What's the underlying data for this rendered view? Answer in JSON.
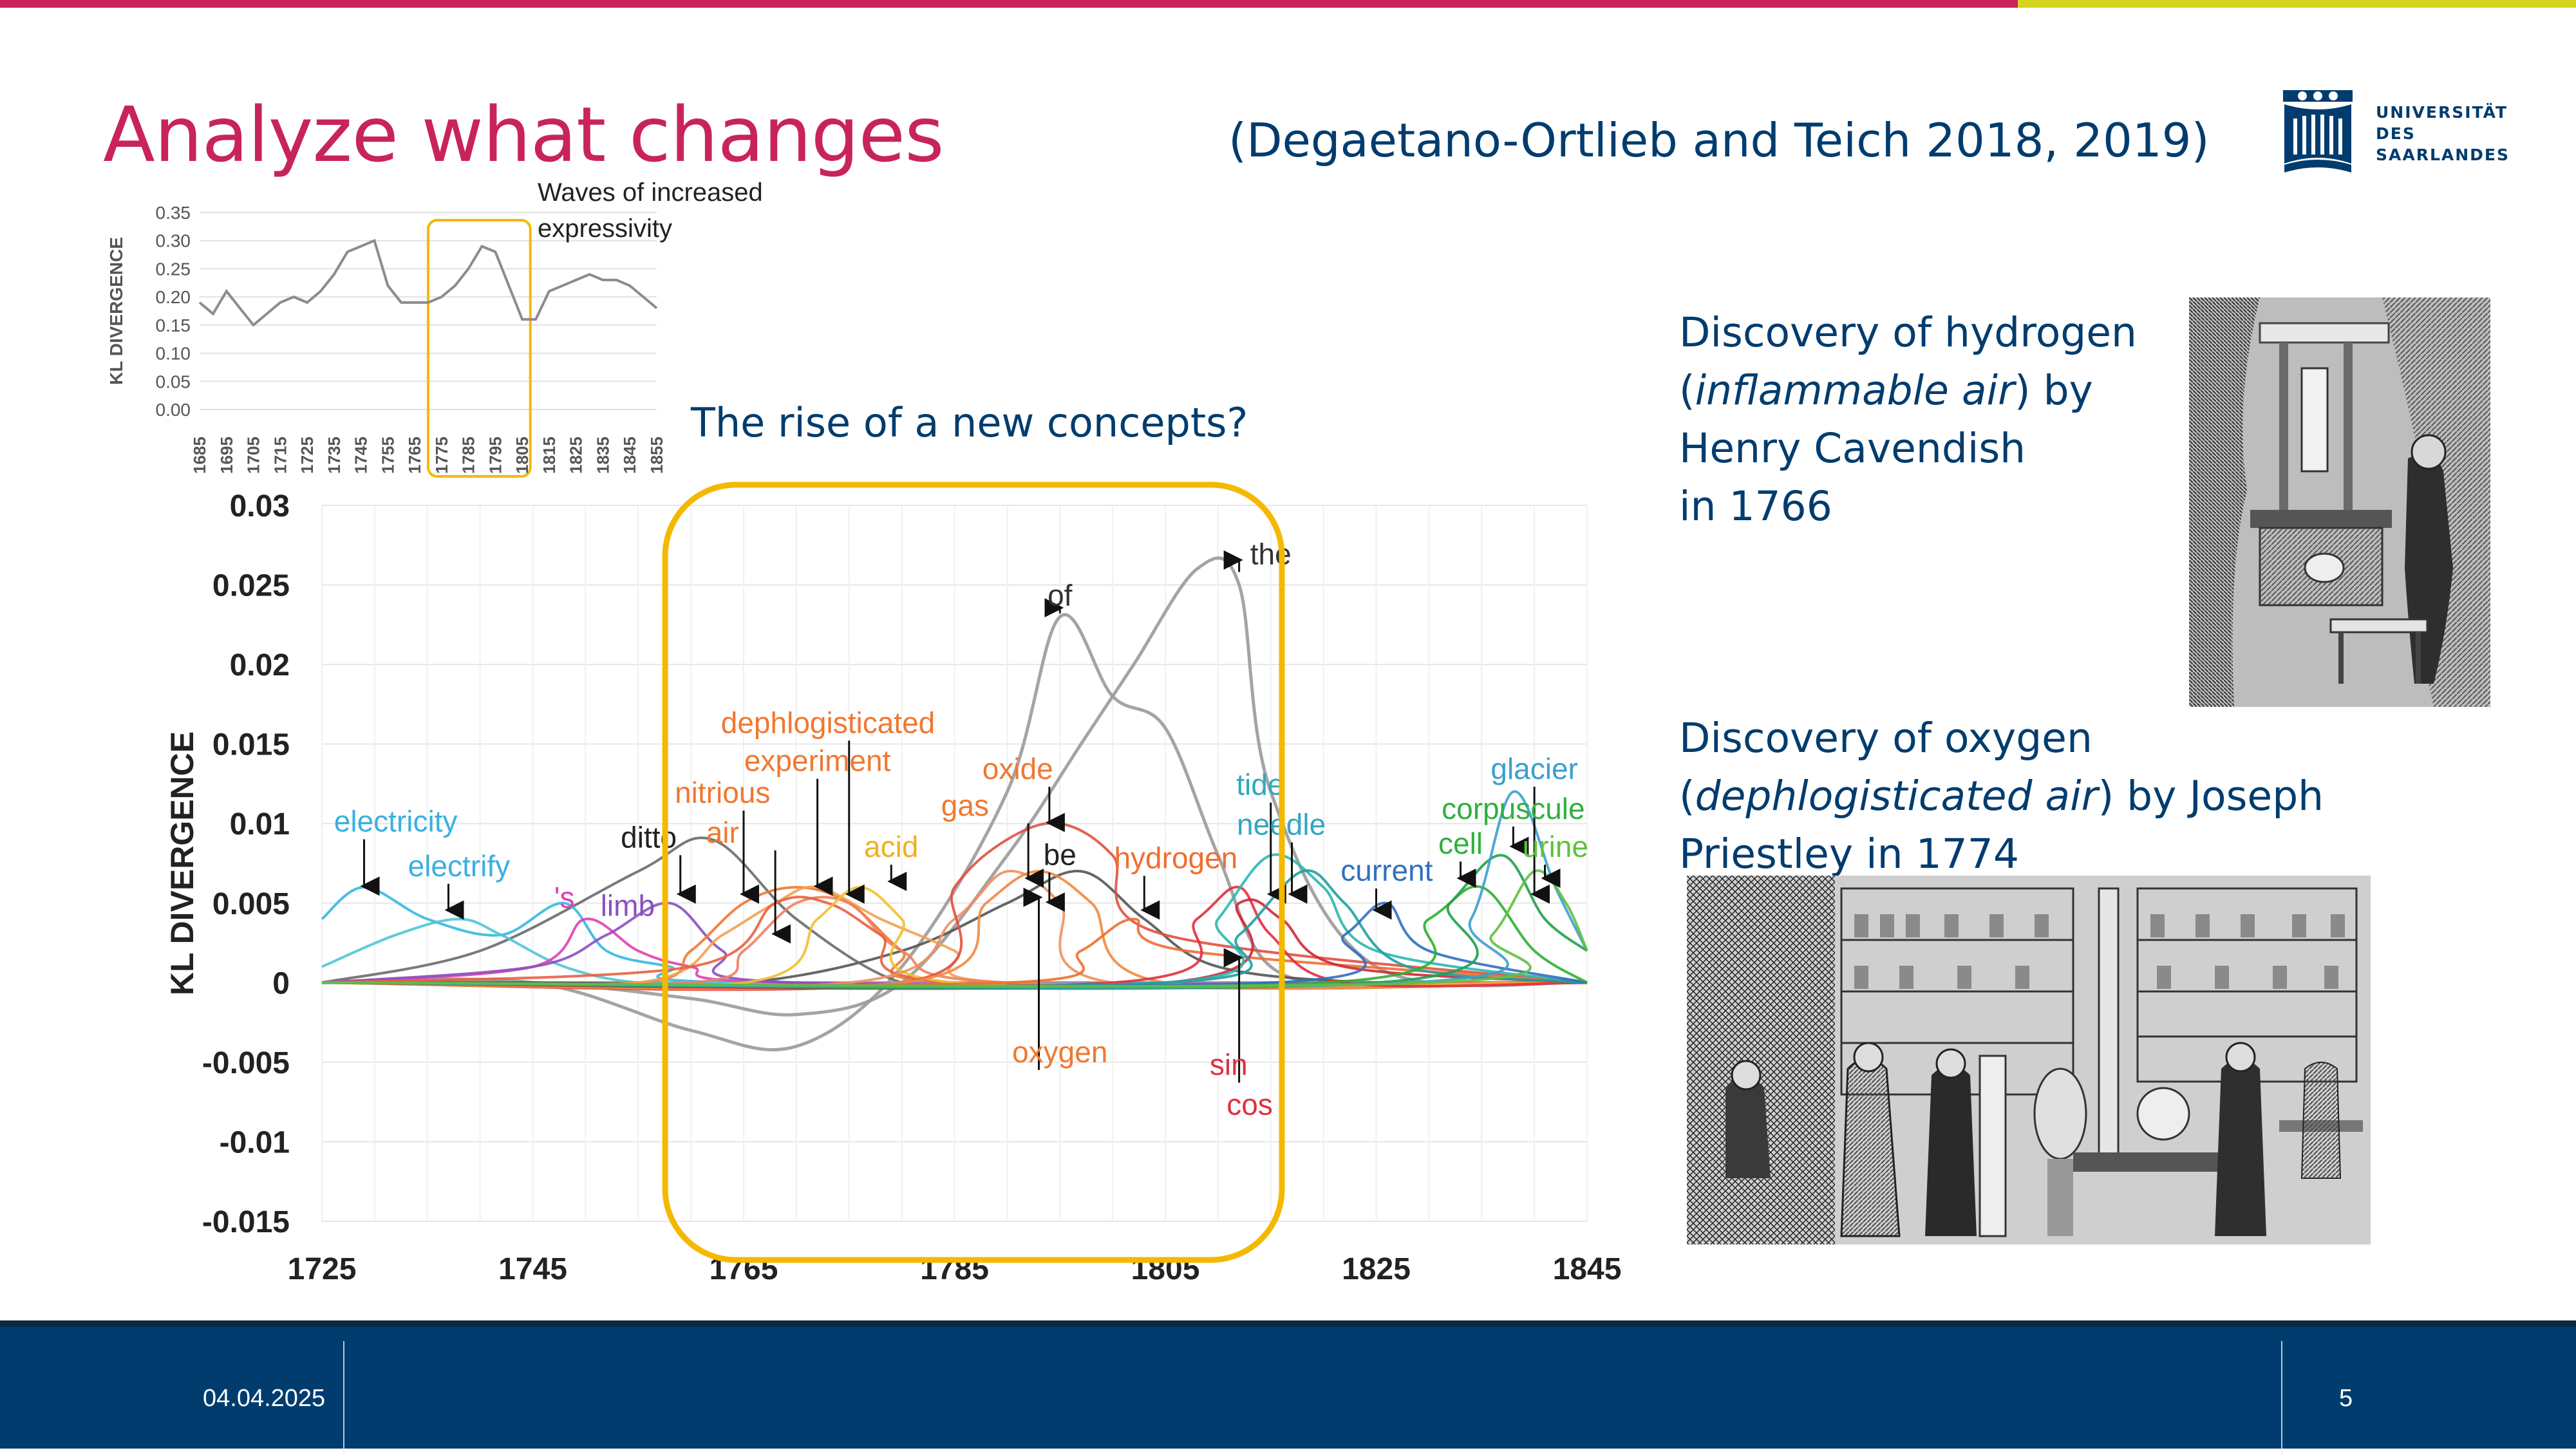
{
  "theme": {
    "red": "#c8245a",
    "yellow": "#d7d41f",
    "navy": "#003c6e",
    "navy_dark": "#0a2940",
    "highlight": "#f5b800"
  },
  "slide": {
    "title": "Analyze what changes",
    "citation": "(Degaetano-Ortlieb and Teich 2018, 2019)",
    "logo_lines": [
      "UNIVERSITÄT",
      "DES",
      "SAARLANDES"
    ],
    "rise_label": "The rise of a new concepts?"
  },
  "hydrogen": {
    "line1": "Discovery of hydrogen",
    "line2_open": "(",
    "line2_italic": "inflammable air",
    "line2_close": ") by",
    "line3": "Henry Cavendish",
    "line4": "in 1766"
  },
  "oxygen": {
    "line1": "Discovery of oxygen",
    "line2_open": "(",
    "line2_italic": "dephlogisticated air",
    "line2_close": ") by Joseph",
    "line3": "Priestley in 1774"
  },
  "footer": {
    "date": "04.04.2025",
    "page": "5"
  },
  "chart_data": [
    {
      "type": "area",
      "ylabel": "KL DIVERGENCE",
      "ylim": [
        0,
        0.35
      ],
      "yticks": [
        "0.35",
        "0.30",
        "0.25",
        "0.20",
        "0.15",
        "0.10",
        "0.05",
        "0.00"
      ],
      "xticks": [
        "1685",
        "1695",
        "1705",
        "1715",
        "1725",
        "1735",
        "1745",
        "1755",
        "1765",
        "1775",
        "1785",
        "1795",
        "1805",
        "1815",
        "1825",
        "1835",
        "1845",
        "1855"
      ],
      "annotation": "Waves of increased expressivity",
      "highlight_range": [
        1770,
        1808
      ],
      "x": [
        1685,
        1690,
        1695,
        1700,
        1705,
        1710,
        1715,
        1720,
        1725,
        1730,
        1735,
        1740,
        1745,
        1750,
        1755,
        1760,
        1765,
        1770,
        1775,
        1780,
        1785,
        1790,
        1795,
        1800,
        1805,
        1810,
        1815,
        1820,
        1825,
        1830,
        1835,
        1840,
        1845,
        1850,
        1855
      ],
      "y": [
        0.19,
        0.17,
        0.21,
        0.18,
        0.15,
        0.17,
        0.19,
        0.2,
        0.19,
        0.21,
        0.24,
        0.28,
        0.29,
        0.3,
        0.22,
        0.19,
        0.19,
        0.19,
        0.2,
        0.22,
        0.25,
        0.29,
        0.28,
        0.22,
        0.16,
        0.16,
        0.21,
        0.22,
        0.23,
        0.24,
        0.23,
        0.23,
        0.22,
        0.2,
        0.18
      ]
    },
    {
      "type": "line",
      "ylabel": "KL DIVERGENCE",
      "ylim": [
        -0.015,
        0.03
      ],
      "xlim": [
        1725,
        1845
      ],
      "yticks": [
        "0.03",
        "0.025",
        "0.02",
        "0.015",
        "0.01",
        "0.005",
        "0",
        "-0.005",
        "-0.01",
        "-0.015"
      ],
      "xticks": [
        "1725",
        "1745",
        "1765",
        "1785",
        "1805",
        "1825",
        "1845"
      ],
      "grid": true,
      "highlight_range": [
        1760,
        1813
      ],
      "series": [
        {
          "name": "the",
          "color": "#9a9a9a",
          "x": [
            1725,
            1745,
            1760,
            1770,
            1780,
            1790,
            1797,
            1802,
            1808,
            1812,
            1815,
            1825,
            1845
          ],
          "y": [
            0,
            0,
            -0.001,
            -0.002,
            0,
            0.008,
            0.015,
            0.02,
            0.026,
            0.025,
            0.012,
            0.001,
            0
          ]
        },
        {
          "name": "of",
          "color": "#9a9a9a",
          "x": [
            1725,
            1745,
            1760,
            1770,
            1780,
            1790,
            1795,
            1800,
            1805,
            1810,
            1815,
            1825,
            1845
          ],
          "y": [
            0,
            0,
            -0.003,
            -0.004,
            0.001,
            0.012,
            0.023,
            0.018,
            0.016,
            0.008,
            0.001,
            0,
            0
          ]
        },
        {
          "name": "be",
          "color": "#555555",
          "x": [
            1725,
            1745,
            1765,
            1780,
            1790,
            1797,
            1803,
            1810,
            1825,
            1845
          ],
          "y": [
            0,
            0,
            0,
            0.002,
            0.005,
            0.007,
            0.004,
            0.001,
            0,
            0
          ]
        },
        {
          "name": "ditto",
          "color": "#6a6a6a",
          "x": [
            1725,
            1740,
            1755,
            1762,
            1770,
            1780,
            1790,
            1800,
            1845
          ],
          "y": [
            0,
            0.002,
            0.007,
            0.009,
            0.004,
            0,
            0,
            0,
            0
          ]
        },
        {
          "name": "electricity",
          "color": "#35b8e0",
          "x": [
            1725,
            1729,
            1735,
            1742,
            1748,
            1752,
            1758,
            1765,
            1845
          ],
          "y": [
            0.004,
            0.006,
            0.004,
            0.003,
            0.005,
            0.002,
            0.001,
            0,
            0
          ]
        },
        {
          "name": "electrify",
          "color": "#4fc4d8",
          "x": [
            1725,
            1732,
            1738,
            1742,
            1748,
            1755,
            1765,
            1845
          ],
          "y": [
            0.001,
            0.003,
            0.004,
            0.003,
            0.001,
            0,
            0,
            0
          ]
        },
        {
          "name": "'s",
          "color": "#e040b0",
          "x": [
            1725,
            1745,
            1750,
            1755,
            1760,
            1770,
            1845
          ],
          "y": [
            0,
            0.001,
            0.004,
            0.002,
            0.001,
            0,
            0
          ]
        },
        {
          "name": "limb",
          "color": "#8a50c0",
          "x": [
            1725,
            1745,
            1752,
            1758,
            1763,
            1770,
            1845
          ],
          "y": [
            0,
            0.001,
            0.003,
            0.005,
            0.002,
            0,
            0
          ]
        },
        {
          "name": "nitrious",
          "color": "#f07830",
          "x": [
            1725,
            1755,
            1760,
            1765,
            1770,
            1775,
            1780,
            1785,
            1845
          ],
          "y": [
            0,
            0,
            0.002,
            0.005,
            0.006,
            0.005,
            0.002,
            0,
            0
          ]
        },
        {
          "name": "air",
          "color": "#f4a050",
          "x": [
            1725,
            1755,
            1763,
            1768,
            1772,
            1778,
            1785,
            1790,
            1845
          ],
          "y": [
            0,
            0,
            0.003,
            0.005,
            0.006,
            0.004,
            0.002,
            0,
            0
          ]
        },
        {
          "name": "dephlogisticated",
          "color": "#f08060",
          "x": [
            1725,
            1760,
            1765,
            1770,
            1775,
            1780,
            1790,
            1845
          ],
          "y": [
            0,
            0,
            0.002,
            0.005,
            0.005,
            0.002,
            0,
            0
          ]
        },
        {
          "name": "experiment",
          "color": "#e86040",
          "x": [
            1725,
            1760,
            1768,
            1773,
            1778,
            1785,
            1845
          ],
          "y": [
            0,
            0.001,
            0.005,
            0.005,
            0.003,
            0,
            0
          ]
        },
        {
          "name": "acid",
          "color": "#f0c030",
          "x": [
            1725,
            1765,
            1772,
            1776,
            1780,
            1785,
            1845
          ],
          "y": [
            0,
            0,
            0.004,
            0.006,
            0.004,
            0,
            0
          ]
        },
        {
          "name": "gas",
          "color": "#f09060",
          "x": [
            1725,
            1775,
            1785,
            1790,
            1795,
            1800,
            1845
          ],
          "y": [
            0,
            0,
            0.004,
            0.007,
            0.005,
            0,
            0
          ]
        },
        {
          "name": "oxide",
          "color": "#e05040",
          "x": [
            1725,
            1780,
            1785,
            1790,
            1795,
            1800,
            1805,
            1845
          ],
          "y": [
            0,
            0,
            0.006,
            0.009,
            0.01,
            0.008,
            0.003,
            0
          ]
        },
        {
          "name": "oxygen",
          "color": "#f08a40",
          "x": [
            1725,
            1780,
            1788,
            1793,
            1798,
            1805,
            1845
          ],
          "y": [
            0,
            0,
            0.005,
            0.007,
            0.005,
            0,
            0
          ]
        },
        {
          "name": "hydrogen",
          "color": "#f06e30",
          "x": [
            1725,
            1790,
            1797,
            1802,
            1807,
            1845
          ],
          "y": [
            0,
            0,
            0.002,
            0.004,
            0.002,
            0
          ]
        },
        {
          "name": "sin",
          "color": "#e03040",
          "x": [
            1725,
            1800,
            1808,
            1812,
            1815,
            1822,
            1845
          ],
          "y": [
            0,
            0,
            0.004,
            0.006,
            0.003,
            0,
            0
          ]
        },
        {
          "name": "cos",
          "color": "#d02838",
          "x": [
            1725,
            1805,
            1812,
            1816,
            1822,
            1845
          ],
          "y": [
            0,
            0,
            0.005,
            0.004,
            0.001,
            0
          ]
        },
        {
          "name": "tide",
          "color": "#2ab8b0",
          "x": [
            1725,
            1805,
            1810,
            1815,
            1820,
            1825,
            1845
          ],
          "y": [
            0,
            0,
            0.004,
            0.008,
            0.006,
            0.002,
            0
          ]
        },
        {
          "name": "needle",
          "color": "#20a0a0",
          "x": [
            1725,
            1805,
            1812,
            1818,
            1822,
            1828,
            1845
          ],
          "y": [
            0,
            0,
            0.003,
            0.007,
            0.005,
            0.001,
            0
          ]
        },
        {
          "name": "current",
          "color": "#3070c0",
          "x": [
            1725,
            1815,
            1822,
            1826,
            1830,
            1845
          ],
          "y": [
            0,
            0,
            0.003,
            0.005,
            0.002,
            0
          ]
        },
        {
          "name": "cell",
          "color": "#30b030",
          "x": [
            1725,
            1820,
            1830,
            1835,
            1840,
            1845
          ],
          "y": [
            0,
            0,
            0.004,
            0.006,
            0.002,
            0
          ]
        },
        {
          "name": "corpuscule",
          "color": "#20a050",
          "x": [
            1725,
            1825,
            1832,
            1837,
            1841,
            1845
          ],
          "y": [
            0,
            0,
            0.005,
            0.008,
            0.004,
            0.002
          ]
        },
        {
          "name": "glacier",
          "color": "#3aa0d0",
          "x": [
            1725,
            1828,
            1834,
            1838,
            1842,
            1845
          ],
          "y": [
            0,
            0,
            0.004,
            0.012,
            0.006,
            0.002
          ]
        },
        {
          "name": "urine",
          "color": "#60c040",
          "x": [
            1725,
            1830,
            1836,
            1840,
            1843,
            1845
          ],
          "y": [
            0,
            0,
            0.003,
            0.007,
            0.005,
            0.002
          ]
        }
      ],
      "labels": [
        {
          "text": "the",
          "x": 1815,
          "y": 0.0263,
          "color": "#333333",
          "tx": 1812,
          "ty": 0.026
        },
        {
          "text": "of",
          "x": 1795,
          "y": 0.0237,
          "color": "#333333",
          "tx": 1795,
          "ty": 0.023
        },
        {
          "text": "dephlogisticated",
          "x": 1773,
          "y": 0.0157,
          "color": "#f07830",
          "tx": 1775,
          "ty": 0.005
        },
        {
          "text": "experiment",
          "x": 1772,
          "y": 0.0133,
          "color": "#f07830",
          "tx": 1772,
          "ty": 0.0055
        },
        {
          "text": "nitrious",
          "x": 1763,
          "y": 0.0113,
          "color": "#f07830",
          "tx": 1765,
          "ty": 0.005
        },
        {
          "text": "air",
          "x": 1763,
          "y": 0.0088,
          "color": "#f07830",
          "tx": 1768,
          "ty": 0.0025
        },
        {
          "text": "oxide",
          "x": 1791,
          "y": 0.0128,
          "color": "#f07830",
          "tx": 1794,
          "ty": 0.0095
        },
        {
          "text": "gas",
          "x": 1786,
          "y": 0.0105,
          "color": "#f07830",
          "tx": 1792,
          "ty": 0.006
        },
        {
          "text": "acid",
          "x": 1779,
          "y": 0.0079,
          "color": "#f0b020",
          "tx": 1779,
          "ty": 0.0058
        },
        {
          "text": "be",
          "x": 1795,
          "y": 0.0074,
          "color": "#222222",
          "tx": 1794,
          "ty": 0.0045
        },
        {
          "text": "hydrogen",
          "x": 1806,
          "y": 0.0072,
          "color": "#f06e30",
          "tx": 1803,
          "ty": 0.004
        },
        {
          "text": "oxygen",
          "x": 1795,
          "y": -0.005,
          "color": "#f07830",
          "tx": 1793,
          "ty": 0.0048
        },
        {
          "text": "ditto",
          "x": 1756,
          "y": 0.0085,
          "color": "#222222",
          "tx": 1759,
          "ty": 0.005
        },
        {
          "text": "electricity",
          "x": 1732,
          "y": 0.0095,
          "color": "#3ab0e0",
          "tx": 1729,
          "ty": 0.0055
        },
        {
          "text": "electrify",
          "x": 1738,
          "y": 0.0067,
          "color": "#3ab0e0",
          "tx": 1737,
          "ty": 0.004
        },
        {
          "text": "'s",
          "x": 1748,
          "y": 0.0047,
          "color": "#e040b0"
        },
        {
          "text": "limb",
          "x": 1754,
          "y": 0.0042,
          "color": "#8a50c0"
        },
        {
          "text": "tide",
          "x": 1814,
          "y": 0.0118,
          "color": "#30a8c0",
          "tx": 1815,
          "ty": 0.005
        },
        {
          "text": "needle",
          "x": 1816,
          "y": 0.0093,
          "color": "#30a8c0",
          "tx": 1817,
          "ty": 0.005
        },
        {
          "text": "current",
          "x": 1826,
          "y": 0.0064,
          "color": "#3070c0",
          "tx": 1825,
          "ty": 0.004
        },
        {
          "text": "sin",
          "x": 1811,
          "y": -0.0058,
          "color": "#e03040",
          "tx": 1812,
          "ty": 0.001
        },
        {
          "text": "cos",
          "x": 1813,
          "y": -0.0083,
          "color": "#e03040"
        },
        {
          "text": "glacier",
          "x": 1840,
          "y": 0.0128,
          "color": "#3aa0d0",
          "tx": 1840,
          "ty": 0.005
        },
        {
          "text": "corpuscule",
          "x": 1838,
          "y": 0.0103,
          "color": "#30b040",
          "tx": 1838,
          "ty": 0.008
        },
        {
          "text": "cell",
          "x": 1833,
          "y": 0.0081,
          "color": "#30b040",
          "tx": 1833,
          "ty": 0.006
        },
        {
          "text": "urine",
          "x": 1842,
          "y": 0.0079,
          "color": "#60c040",
          "tx": 1841,
          "ty": 0.006
        }
      ]
    }
  ]
}
